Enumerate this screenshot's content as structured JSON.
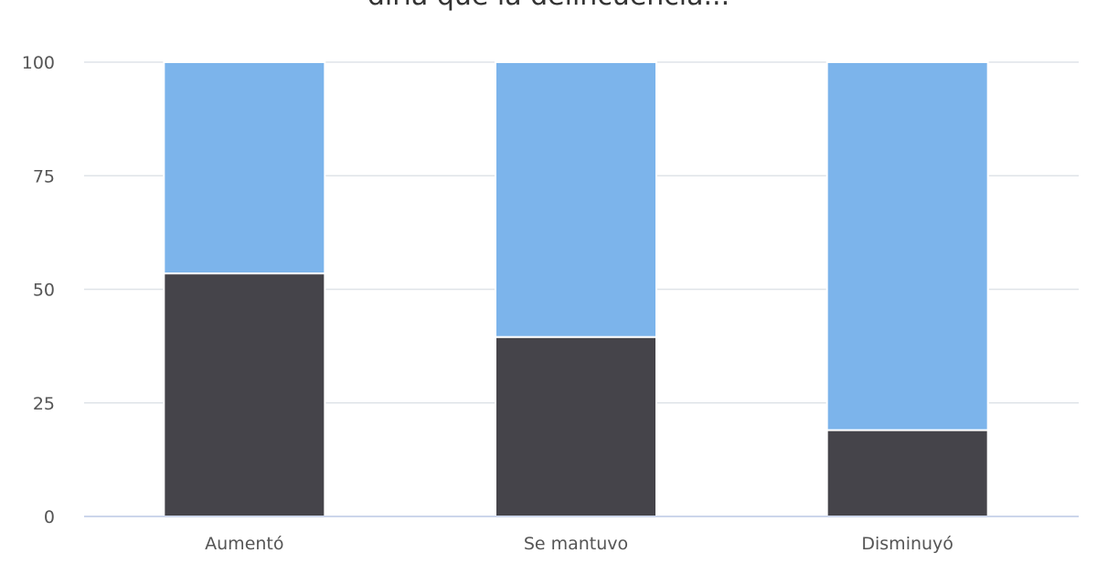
{
  "chart_data": {
    "type": "bar",
    "stacked": true,
    "title": "diría que la delincuencia...",
    "categories": [
      "Aumentó",
      "Se mantuvo",
      "Disminuyó"
    ],
    "series": [
      {
        "color": "#45444a",
        "values": [
          53.5,
          39.5,
          19
        ]
      },
      {
        "color": "#7cb4eb",
        "values": [
          46.5,
          60.5,
          81
        ]
      }
    ],
    "ylim": [
      0,
      100
    ],
    "yticks": [
      0,
      25,
      50,
      75,
      100
    ],
    "grid": true,
    "legend": "none"
  }
}
